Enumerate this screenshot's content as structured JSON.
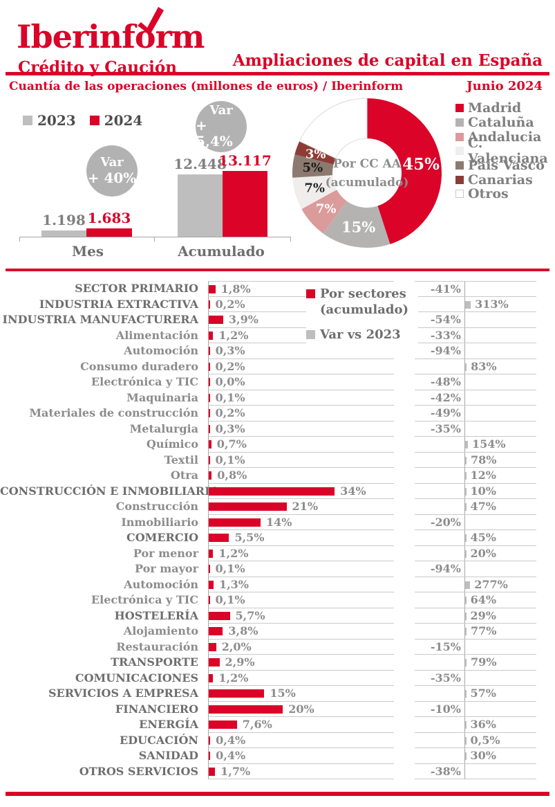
{
  "header": {
    "logo_brand": "Iberinform",
    "logo_sub": "Crédito y Caución",
    "title": "Ampliaciones de capital en España",
    "subtitle": "Cuantía de las operaciones (millones de euros) / Iberinform",
    "date": "Junio 2024"
  },
  "colors": {
    "accent_red": "#DB0328",
    "gray_bar": "#BFBEBE",
    "circle_gray": "#B3B2B2",
    "axis_gray": "#A6A6A6",
    "gridline_gray": "#C9C9C9",
    "dark_text": "#4D4D4D",
    "mid_text": "#7F7F7F",
    "donut_madrid": "#DB0328",
    "donut_cataluna": "#B5B3B2",
    "donut_andalucia": "#DB9B9B",
    "donut_valenciana": "#EFEEEC",
    "donut_paisvasco": "#8C7A70",
    "donut_canarias": "#8E3B35",
    "donut_otros": "#FFFFFF"
  },
  "chart_data": [
    {
      "type": "bar",
      "title": "Cuantía de las operaciones (millones de euros)",
      "categories": [
        "Mes",
        "Acumulado"
      ],
      "series": [
        {
          "name": "2023",
          "values": [
            1198,
            12448
          ],
          "labels": [
            "1.198",
            "12.448"
          ],
          "color": "#BFBEBE",
          "label_color": "#7F7F7F"
        },
        {
          "name": "2024",
          "values": [
            1683,
            13117
          ],
          "labels": [
            "1.683",
            "13.117"
          ],
          "color": "#DB0328",
          "label_color": "#DB0328"
        }
      ],
      "variations": [
        {
          "lines": [
            "Var",
            "+ 40%"
          ]
        },
        {
          "lines": [
            "Var",
            "+ 5,4%"
          ]
        }
      ],
      "ylim": [
        0,
        13117
      ],
      "grid": false,
      "legend_position": "top-left"
    },
    {
      "type": "pie",
      "title": "Por CC AA (acumulado)",
      "center_lines": [
        "Por CC AA",
        "(acumulado)"
      ],
      "slices": [
        {
          "name": "Madrid",
          "pct": 45,
          "label": "45%",
          "color": "#DB0328",
          "label_color": "#FFFFFF"
        },
        {
          "name": "Cataluña",
          "pct": 15,
          "label": "15%",
          "color": "#B5B3B2",
          "label_color": "#FFFFFF"
        },
        {
          "name": "Andalucia",
          "pct": 7,
          "label": "7%",
          "color": "#DB9B9B",
          "label_color": "#FFFFFF"
        },
        {
          "name": "C. Valenciana",
          "pct": 7,
          "label": "7%",
          "color": "#EFEEEC",
          "label_color": "#262626"
        },
        {
          "name": "País Vasco",
          "pct": 5,
          "label": "5%",
          "color": "#8C7A70",
          "label_color": "#1A1A1A"
        },
        {
          "name": "Canarias",
          "pct": 3,
          "label": "3%",
          "color": "#8E3B35",
          "label_color": "#FFFFFF"
        },
        {
          "name": "Otros",
          "pct": 18,
          "label": "",
          "color": "#FFFFFF",
          "label_color": "#262626"
        }
      ],
      "legend_position": "right"
    },
    {
      "type": "bar",
      "title": "Por sectores (acumulado) / Var vs 2023",
      "legend": {
        "series1_line1": "Por sectores",
        "series1_line2": "(acumulado)",
        "series2": "Var vs 2023"
      },
      "rows": [
        {
          "label": "SECTOR PRIMARIO",
          "level": "major",
          "pct": 1.8,
          "pct_label": "1,8%",
          "var": -41,
          "var_label": "-41%"
        },
        {
          "label": "INDUSTRIA EXTRACTIVA",
          "level": "major",
          "pct": 0.2,
          "pct_label": "0,2%",
          "var": 313,
          "var_label": "313%"
        },
        {
          "label": "INDUSTRIA MANUFACTURERA",
          "level": "major",
          "pct": 3.9,
          "pct_label": "3,9%",
          "var": -54,
          "var_label": "-54%"
        },
        {
          "label": "Alimentación",
          "level": "sub",
          "pct": 1.2,
          "pct_label": "1,2%",
          "var": -33,
          "var_label": "-33%"
        },
        {
          "label": "Automoción",
          "level": "sub",
          "pct": 0.3,
          "pct_label": "0,3%",
          "var": -94,
          "var_label": "-94%"
        },
        {
          "label": "Consumo duradero",
          "level": "sub",
          "pct": 0.2,
          "pct_label": "0,2%",
          "var": 83,
          "var_label": "83%"
        },
        {
          "label": "Electrónica y TIC",
          "level": "sub",
          "pct": 0.0,
          "pct_label": "0,0%",
          "var": -48,
          "var_label": "-48%"
        },
        {
          "label": "Maquinaria",
          "level": "sub",
          "pct": 0.1,
          "pct_label": "0,1%",
          "var": -42,
          "var_label": "-42%"
        },
        {
          "label": "Materiales de construcción",
          "level": "sub",
          "pct": 0.2,
          "pct_label": "0,2%",
          "var": -49,
          "var_label": "-49%"
        },
        {
          "label": "Metalurgia",
          "level": "sub",
          "pct": 0.3,
          "pct_label": "0,3%",
          "var": -35,
          "var_label": "-35%"
        },
        {
          "label": "Químico",
          "level": "sub",
          "pct": 0.7,
          "pct_label": "0,7%",
          "var": 154,
          "var_label": "154%"
        },
        {
          "label": "Textil",
          "level": "sub",
          "pct": 0.1,
          "pct_label": "0,1%",
          "var": 78,
          "var_label": "78%"
        },
        {
          "label": "Otra",
          "level": "sub",
          "pct": 0.8,
          "pct_label": "0,8%",
          "var": 12,
          "var_label": "12%"
        },
        {
          "label": "CONSTRUCCIÓN E INMOBILIARIO",
          "level": "major",
          "pct": 34,
          "pct_label": "34%",
          "var": 10,
          "var_label": "10%"
        },
        {
          "label": "Construcción",
          "level": "sub",
          "pct": 21,
          "pct_label": "21%",
          "var": 47,
          "var_label": "47%"
        },
        {
          "label": "Inmobiliario",
          "level": "sub",
          "pct": 14,
          "pct_label": "14%",
          "var": -20,
          "var_label": "-20%"
        },
        {
          "label": "COMERCIO",
          "level": "major",
          "pct": 5.5,
          "pct_label": "5,5%",
          "var": 45,
          "var_label": "45%"
        },
        {
          "label": "Por menor",
          "level": "sub",
          "pct": 1.2,
          "pct_label": "1,2%",
          "var": 20,
          "var_label": "20%"
        },
        {
          "label": "Por mayor",
          "level": "sub",
          "pct": 0.1,
          "pct_label": "0,1%",
          "var": -94,
          "var_label": "-94%"
        },
        {
          "label": "Automoción",
          "level": "sub",
          "pct": 1.3,
          "pct_label": "1,3%",
          "var": 277,
          "var_label": "277%"
        },
        {
          "label": "Electrónica y TIC",
          "level": "sub",
          "pct": 0.1,
          "pct_label": "0,1%",
          "var": 64,
          "var_label": "64%"
        },
        {
          "label": "HOSTELERÍA",
          "level": "major",
          "pct": 5.7,
          "pct_label": "5,7%",
          "var": 29,
          "var_label": "29%"
        },
        {
          "label": "Alojamiento",
          "level": "sub",
          "pct": 3.8,
          "pct_label": "3,8%",
          "var": 77,
          "var_label": "77%"
        },
        {
          "label": "Restauración",
          "level": "sub",
          "pct": 2.0,
          "pct_label": "2,0%",
          "var": -15,
          "var_label": "-15%"
        },
        {
          "label": "TRANSPORTE",
          "level": "major",
          "pct": 2.9,
          "pct_label": "2,9%",
          "var": 79,
          "var_label": "79%"
        },
        {
          "label": "COMUNICACIONES",
          "level": "major",
          "pct": 1.2,
          "pct_label": "1,2%",
          "var": -35,
          "var_label": "-35%"
        },
        {
          "label": "SERVICIOS A EMPRESA",
          "level": "major",
          "pct": 15,
          "pct_label": "15%",
          "var": 57,
          "var_label": "57%"
        },
        {
          "label": "FINANCIERO",
          "level": "major",
          "pct": 20,
          "pct_label": "20%",
          "var": -10,
          "var_label": "-10%"
        },
        {
          "label": "ENERGÍA",
          "level": "major",
          "pct": 7.6,
          "pct_label": "7,6%",
          "var": 36,
          "var_label": "36%"
        },
        {
          "label": "EDUCACIÓN",
          "level": "major",
          "pct": 0.4,
          "pct_label": "0,4%",
          "var": 0.5,
          "var_label": "0,5%"
        },
        {
          "label": "SANIDAD",
          "level": "major",
          "pct": 0.4,
          "pct_label": "0,4%",
          "var": 30,
          "var_label": "30%"
        },
        {
          "label": "OTROS SERVICIOS",
          "level": "major",
          "pct": 1.7,
          "pct_label": "1,7%",
          "var": -38,
          "var_label": "-38%"
        }
      ]
    }
  ]
}
